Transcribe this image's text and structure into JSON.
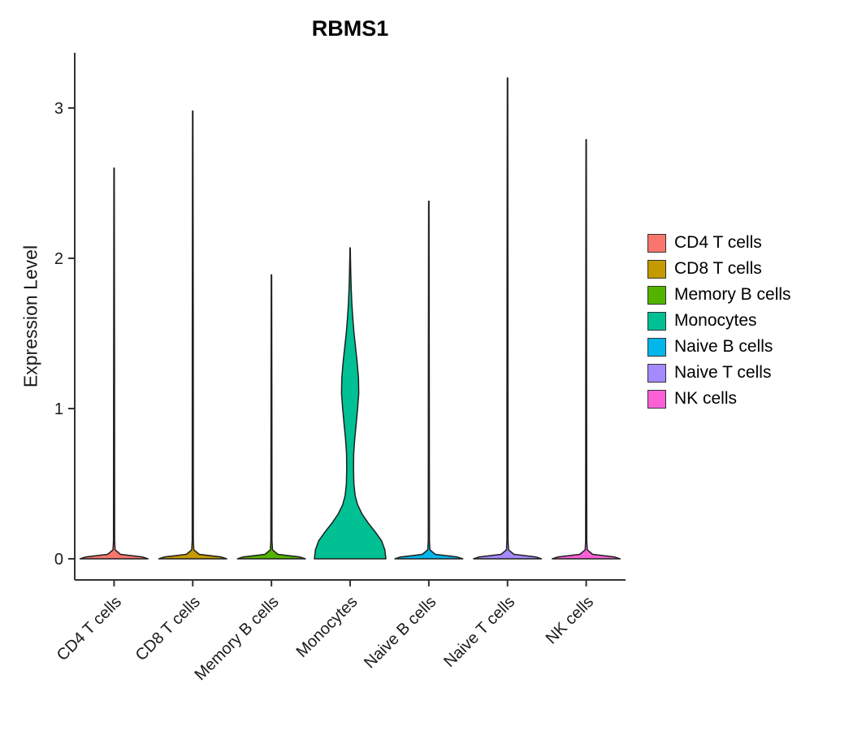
{
  "title": "RBMS1",
  "ylabel": "Expression Level",
  "chart_data": {
    "type": "violin",
    "title": "RBMS1",
    "xlabel": "",
    "ylabel": "Expression Level",
    "ylim": [
      -0.14,
      3.37
    ],
    "yticks": [
      0,
      1,
      2,
      3
    ],
    "grid": false,
    "legend_position": "right",
    "categories": [
      "CD4 T cells",
      "CD8 T cells",
      "Memory B cells",
      "Monocytes",
      "Naive B cells",
      "Naive T cells",
      "NK cells"
    ],
    "series": [
      {
        "name": "CD4 T cells",
        "color": "#F8766D",
        "shape": "spike",
        "max_expression": 2.6
      },
      {
        "name": "CD8 T cells",
        "color": "#C49A00",
        "shape": "spike",
        "max_expression": 2.98
      },
      {
        "name": "Memory B cells",
        "color": "#53B400",
        "shape": "spike",
        "max_expression": 1.89
      },
      {
        "name": "Monocytes",
        "color": "#00C094",
        "shape": "violin",
        "max_expression": 2.07,
        "profile": [
          [
            0,
            1.0
          ],
          [
            0.06,
            0.97
          ],
          [
            0.12,
            0.88
          ],
          [
            0.18,
            0.7
          ],
          [
            0.24,
            0.5
          ],
          [
            0.3,
            0.33
          ],
          [
            0.36,
            0.21
          ],
          [
            0.42,
            0.14
          ],
          [
            0.5,
            0.105
          ],
          [
            0.6,
            0.095
          ],
          [
            0.7,
            0.1
          ],
          [
            0.8,
            0.13
          ],
          [
            0.9,
            0.17
          ],
          [
            1.0,
            0.21
          ],
          [
            1.1,
            0.24
          ],
          [
            1.2,
            0.235
          ],
          [
            1.3,
            0.2
          ],
          [
            1.4,
            0.155
          ],
          [
            1.5,
            0.11
          ],
          [
            1.6,
            0.075
          ],
          [
            1.7,
            0.048
          ],
          [
            1.8,
            0.03
          ],
          [
            1.9,
            0.018
          ],
          [
            2.0,
            0.01
          ],
          [
            2.07,
            0.005
          ]
        ]
      },
      {
        "name": "Naive B cells",
        "color": "#00B6EB",
        "shape": "spike",
        "max_expression": 2.38
      },
      {
        "name": "Naive T cells",
        "color": "#A58AFF",
        "shape": "spike",
        "max_expression": 3.2
      },
      {
        "name": "NK cells",
        "color": "#FB61D7",
        "shape": "spike",
        "max_expression": 2.79
      }
    ],
    "axis_color": "#333333",
    "violin_outline_color": "#1f1f1f"
  }
}
